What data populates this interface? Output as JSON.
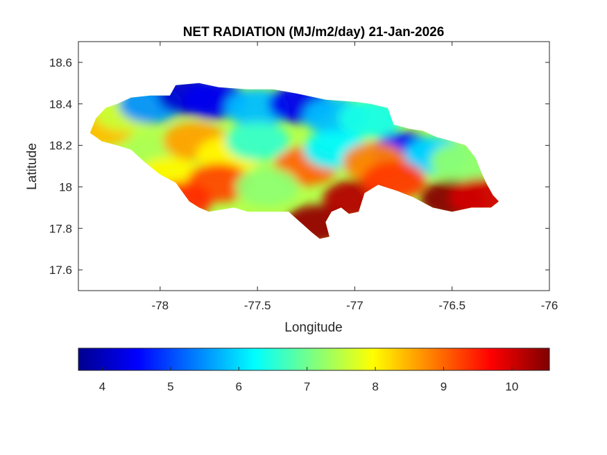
{
  "chart_data": {
    "type": "heatmap",
    "title": "NET RADIATION (MJ/m2/day) 21-Jan-2026",
    "xlabel": "Longitude",
    "ylabel": "Latitude",
    "xlim": [
      -78.42,
      -76.0
    ],
    "ylim": [
      17.5,
      18.7
    ],
    "xticks": [
      -78,
      -77.5,
      -77,
      -76.5,
      -76
    ],
    "xtick_labels": [
      "-78",
      "-77.5",
      "-77",
      "-76.5",
      "-76"
    ],
    "yticks": [
      17.6,
      17.8,
      18,
      18.2,
      18.4,
      18.6
    ],
    "ytick_labels": [
      "17.6",
      "17.8",
      "18",
      "18.2",
      "18.4",
      "18.6"
    ],
    "grid": false,
    "colormap": "jet",
    "colorbar": {
      "orientation": "horizontal",
      "location": "below",
      "range": [
        3.65,
        10.55
      ],
      "ticks": [
        4,
        5,
        6,
        7,
        8,
        9,
        10
      ],
      "tick_labels": [
        "4",
        "5",
        "6",
        "7",
        "8",
        "9",
        "10"
      ]
    },
    "region_outline": [
      [
        -78.36,
        18.26
      ],
      [
        -78.33,
        18.33
      ],
      [
        -78.28,
        18.38
      ],
      [
        -78.22,
        18.4
      ],
      [
        -78.15,
        18.43
      ],
      [
        -78.05,
        18.44
      ],
      [
        -77.95,
        18.44
      ],
      [
        -77.92,
        18.49
      ],
      [
        -77.8,
        18.5
      ],
      [
        -77.7,
        18.48
      ],
      [
        -77.55,
        18.47
      ],
      [
        -77.42,
        18.47
      ],
      [
        -77.3,
        18.45
      ],
      [
        -77.15,
        18.42
      ],
      [
        -77.0,
        18.41
      ],
      [
        -76.92,
        18.4
      ],
      [
        -76.83,
        18.38
      ],
      [
        -76.8,
        18.3
      ],
      [
        -76.72,
        18.28
      ],
      [
        -76.65,
        18.27
      ],
      [
        -76.58,
        18.24
      ],
      [
        -76.5,
        18.22
      ],
      [
        -76.43,
        18.2
      ],
      [
        -76.38,
        18.14
      ],
      [
        -76.35,
        18.07
      ],
      [
        -76.32,
        18.01
      ],
      [
        -76.29,
        17.96
      ],
      [
        -76.26,
        17.93
      ],
      [
        -76.3,
        17.9
      ],
      [
        -76.4,
        17.9
      ],
      [
        -76.5,
        17.88
      ],
      [
        -76.6,
        17.9
      ],
      [
        -76.7,
        17.95
      ],
      [
        -76.78,
        17.98
      ],
      [
        -76.88,
        18.01
      ],
      [
        -76.95,
        17.97
      ],
      [
        -76.98,
        17.88
      ],
      [
        -77.03,
        17.87
      ],
      [
        -77.07,
        17.9
      ],
      [
        -77.12,
        17.88
      ],
      [
        -77.15,
        17.83
      ],
      [
        -77.13,
        17.76
      ],
      [
        -77.18,
        17.75
      ],
      [
        -77.22,
        17.78
      ],
      [
        -77.28,
        17.83
      ],
      [
        -77.34,
        17.88
      ],
      [
        -77.43,
        17.88
      ],
      [
        -77.55,
        17.88
      ],
      [
        -77.62,
        17.9
      ],
      [
        -77.75,
        17.88
      ],
      [
        -77.8,
        17.9
      ],
      [
        -77.85,
        17.93
      ],
      [
        -77.92,
        18.02
      ],
      [
        -78.0,
        18.06
      ],
      [
        -78.08,
        18.12
      ],
      [
        -78.15,
        18.18
      ],
      [
        -78.22,
        18.2
      ],
      [
        -78.3,
        18.22
      ],
      [
        -78.36,
        18.26
      ]
    ],
    "value_field": [
      {
        "lon": -78.3,
        "lat": 18.29,
        "value": 8.4
      },
      {
        "lon": -78.18,
        "lat": 18.36,
        "value": 7.6
      },
      {
        "lon": -78.05,
        "lat": 18.4,
        "value": 5.5
      },
      {
        "lon": -77.85,
        "lat": 18.44,
        "value": 4.2
      },
      {
        "lon": -77.72,
        "lat": 18.42,
        "value": 4.4
      },
      {
        "lon": -77.5,
        "lat": 18.38,
        "value": 5.8
      },
      {
        "lon": -77.28,
        "lat": 18.4,
        "value": 4.4
      },
      {
        "lon": -77.1,
        "lat": 18.34,
        "value": 5.8
      },
      {
        "lon": -76.92,
        "lat": 18.33,
        "value": 6.4
      },
      {
        "lon": -76.75,
        "lat": 18.17,
        "value": 4.5
      },
      {
        "lon": -76.58,
        "lat": 18.15,
        "value": 6.0
      },
      {
        "lon": -76.45,
        "lat": 18.12,
        "value": 7.2
      },
      {
        "lon": -78.05,
        "lat": 18.15,
        "value": 7.4
      },
      {
        "lon": -77.95,
        "lat": 18.05,
        "value": 8.0
      },
      {
        "lon": -77.82,
        "lat": 18.22,
        "value": 8.6
      },
      {
        "lon": -77.65,
        "lat": 18.15,
        "value": 8.0
      },
      {
        "lon": -77.5,
        "lat": 18.22,
        "value": 6.6
      },
      {
        "lon": -77.25,
        "lat": 18.1,
        "value": 9.0
      },
      {
        "lon": -77.1,
        "lat": 18.18,
        "value": 6.2
      },
      {
        "lon": -76.9,
        "lat": 18.12,
        "value": 8.8
      },
      {
        "lon": -77.7,
        "lat": 18.02,
        "value": 9.2
      },
      {
        "lon": -77.45,
        "lat": 18.0,
        "value": 7.2
      },
      {
        "lon": -77.2,
        "lat": 17.82,
        "value": 10.4
      },
      {
        "lon": -77.0,
        "lat": 17.94,
        "value": 10.2
      },
      {
        "lon": -76.8,
        "lat": 18.03,
        "value": 9.3
      },
      {
        "lon": -76.5,
        "lat": 17.94,
        "value": 10.5
      },
      {
        "lon": -76.35,
        "lat": 17.95,
        "value": 10.0
      },
      {
        "lon": -77.9,
        "lat": 17.93,
        "value": 9.4
      }
    ]
  }
}
